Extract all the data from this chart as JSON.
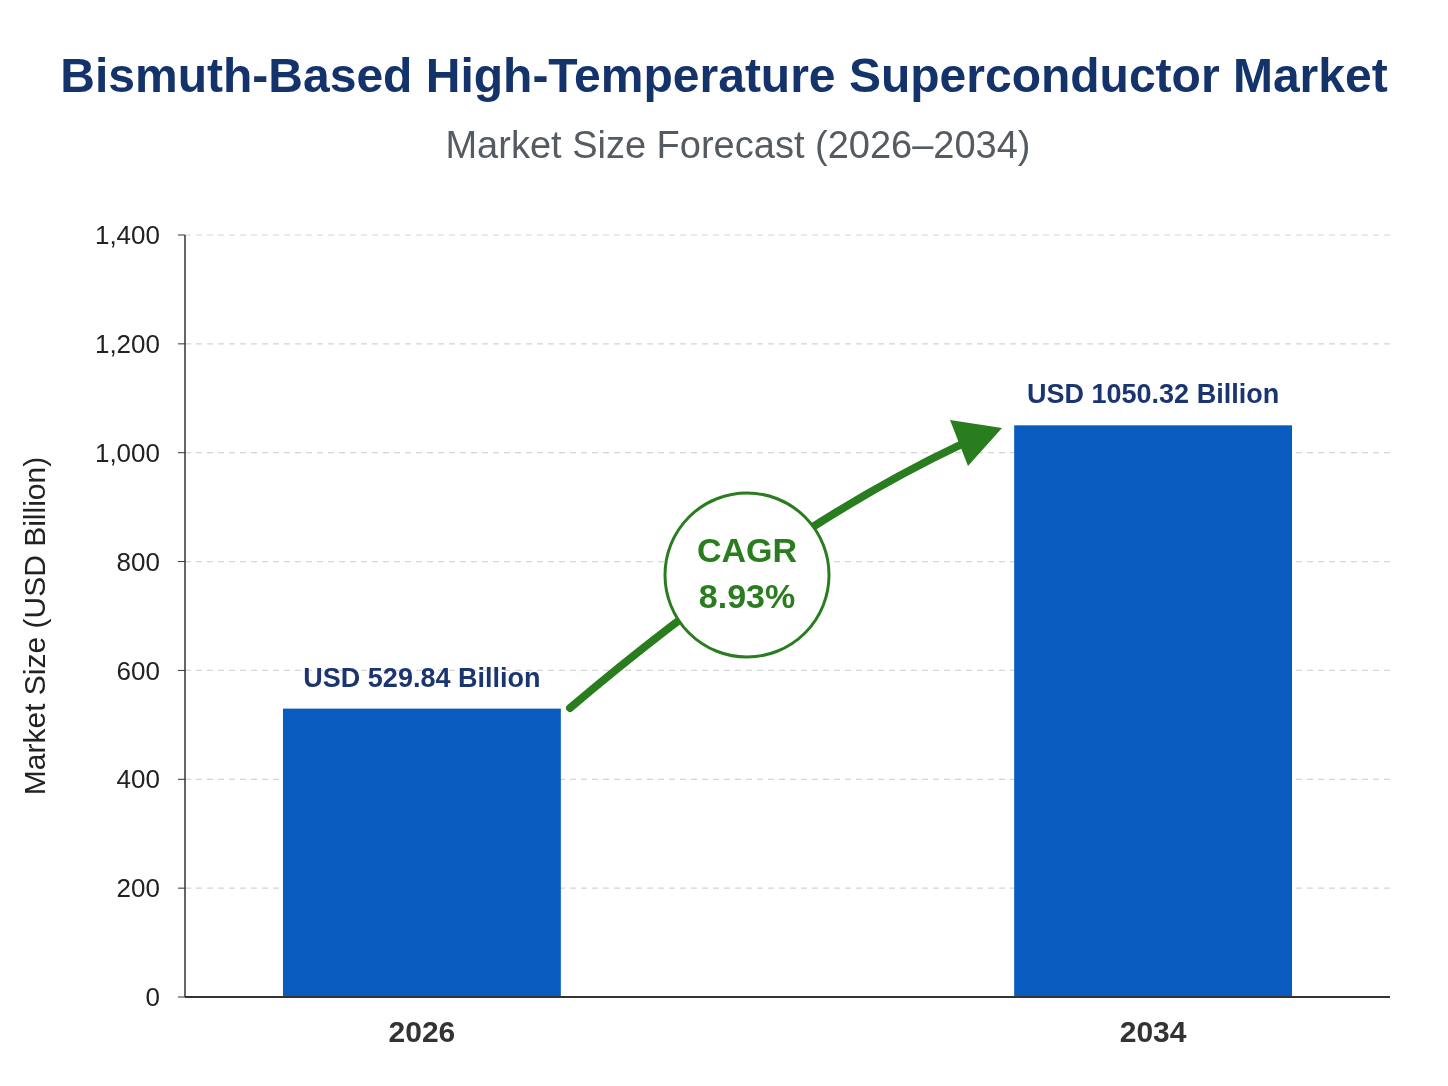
{
  "chart_data": {
    "type": "bar",
    "title": "Bismuth-Based High-Temperature Superconductor Market",
    "subtitle": "Market Size Forecast (2026–2034)",
    "ylabel": "Market Size (USD Billion)",
    "categories": [
      "2026",
      "2034"
    ],
    "values": [
      529.84,
      1050.32
    ],
    "value_labels": [
      "USD 529.84 Billion",
      "USD 1050.32 Billion"
    ],
    "color": "#0a5bbf",
    "ylim": [
      0,
      1400
    ],
    "yticks": [
      0,
      200,
      400,
      600,
      800,
      {
        "value": 1000,
        "label": "1,000"
      },
      {
        "value": 1200,
        "label": "1,200"
      },
      {
        "value": 1400,
        "label": "1,400"
      }
    ],
    "grid": "y",
    "annotations": [
      "CAGR 8.93%"
    ]
  }
}
